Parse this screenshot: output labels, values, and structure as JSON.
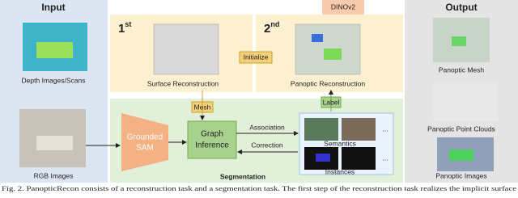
{
  "input": {
    "title": "Input",
    "depth_label": "Depth Images/Scans",
    "rgb_label": "RGB Images"
  },
  "reconstruction": {
    "first": {
      "num": "1",
      "sup": "st"
    },
    "second": {
      "num": "2",
      "sup": "nd"
    },
    "surface": "Surface Reconstruction",
    "panoptic": "Panoptic Reconstruction",
    "initialize": "Initialize",
    "dinov2": "DINOv2",
    "mesh": "Mesh",
    "label": "Label"
  },
  "segmentation": {
    "title": "Segmentation",
    "sam": [
      "Grounded",
      "SAM"
    ],
    "graph": [
      "Graph",
      "Inference"
    ],
    "association": "Association",
    "correction": "Correction",
    "semantics": "Semantics",
    "instances": "Instances",
    "ellipsis": "..."
  },
  "output": {
    "title": "Output",
    "mesh": "Panoptic Mesh",
    "points": "Panoptic Point Clouds",
    "images": "Panoptic Images"
  },
  "caption": "Fig. 2.   PanopticRecon consists of a reconstruction task and a segmentation task. The first step of the reconstruction task realizes the implicit surface"
}
